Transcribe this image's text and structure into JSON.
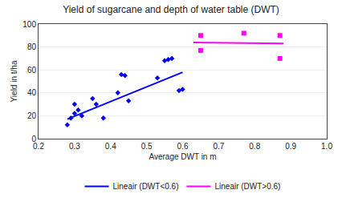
{
  "chart_data": {
    "type": "scatter",
    "title": "Yield of sugarcane and depth of water table (DWT)",
    "x_label": "Average DWT in m",
    "y_label": "Yield in t/ha",
    "xlim": [
      0.2,
      1.0
    ],
    "ylim": [
      0,
      100
    ],
    "xticks": [
      0.2,
      0.3,
      0.4,
      0.5,
      0.6,
      0.7,
      0.8,
      0.9,
      {
        "value": 1.0,
        "label": "1.0"
      }
    ],
    "yticks": [
      0,
      20,
      40,
      60,
      80,
      100
    ],
    "grid": "y",
    "legend": "bottom",
    "series": [
      {
        "type": "scatter",
        "color": "#0000ff",
        "marker": "diamond",
        "x": [
          0.28,
          0.29,
          0.3,
          0.3,
          0.31,
          0.32,
          0.35,
          0.36,
          0.38,
          0.42,
          0.43,
          0.44,
          0.45,
          0.53,
          0.55,
          0.56,
          0.57,
          0.59,
          0.6
        ],
        "values": [
          12,
          18,
          22,
          30,
          25,
          20,
          35,
          30,
          18,
          40,
          56,
          55,
          33,
          53,
          68,
          69,
          70,
          42,
          43
        ]
      },
      {
        "type": "scatter",
        "color": "#ff00ff",
        "marker": "square",
        "x": [
          0.65,
          0.77,
          0.87,
          0.65,
          0.87
        ],
        "values": [
          90,
          92,
          90,
          77,
          70
        ]
      },
      {
        "type": "line",
        "name": "Lineair (DWT<0.6)",
        "color": "#0000ff",
        "line_style": "solid",
        "x": [
          0.28,
          0.6
        ],
        "values": [
          17,
          58
        ]
      },
      {
        "type": "line",
        "name": "Lineair (DWT>0.6)",
        "color": "#ff00ff",
        "line_style": "solid",
        "x": [
          0.63,
          0.88
        ],
        "values": [
          84,
          83
        ]
      }
    ]
  }
}
